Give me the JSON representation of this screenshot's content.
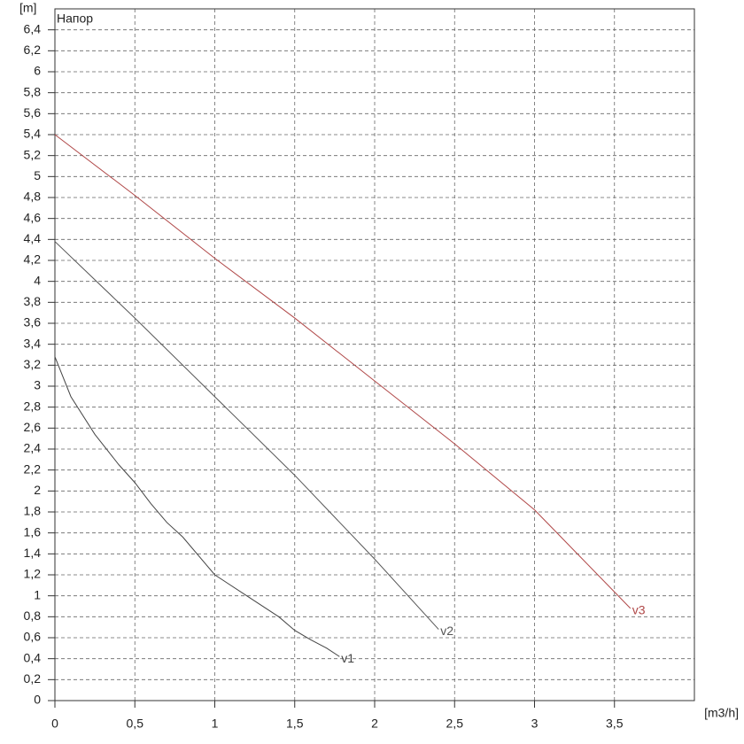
{
  "chart_data": {
    "type": "line",
    "title": "Напор",
    "y_label": "[m]",
    "x_label": "[m3/h]",
    "xlim": [
      0,
      4
    ],
    "ylim": [
      0,
      6.6
    ],
    "grid": true,
    "xticks": [
      0,
      {
        "value": 0.5,
        "label": "0,5"
      },
      1,
      {
        "value": 1.5,
        "label": "1,5"
      },
      2,
      {
        "value": 2.5,
        "label": "2,5"
      },
      3,
      {
        "value": 3.5,
        "label": "3,5"
      }
    ],
    "yticks": [
      0,
      {
        "value": 0.2,
        "label": "0,2"
      },
      {
        "value": 0.4,
        "label": "0,4"
      },
      {
        "value": 0.6,
        "label": "0,6"
      },
      {
        "value": 0.8,
        "label": "0,8"
      },
      1,
      {
        "value": 1.2,
        "label": "1,2"
      },
      {
        "value": 1.4,
        "label": "1,4"
      },
      {
        "value": 1.6,
        "label": "1,6"
      },
      {
        "value": 1.8,
        "label": "1,8"
      },
      2,
      {
        "value": 2.2,
        "label": "2,2"
      },
      {
        "value": 2.4,
        "label": "2,4"
      },
      {
        "value": 2.6,
        "label": "2,6"
      },
      {
        "value": 2.8,
        "label": "2,8"
      },
      3,
      {
        "value": 3.2,
        "label": "3,2"
      },
      {
        "value": 3.4,
        "label": "3,4"
      },
      {
        "value": 3.6,
        "label": "3,6"
      },
      {
        "value": 3.8,
        "label": "3,8"
      },
      4,
      {
        "value": 4.2,
        "label": "4,2"
      },
      {
        "value": 4.4,
        "label": "4,4"
      },
      {
        "value": 4.6,
        "label": "4,6"
      },
      {
        "value": 4.8,
        "label": "4,8"
      },
      5,
      {
        "value": 5.2,
        "label": "5,2"
      },
      {
        "value": 5.4,
        "label": "5,4"
      },
      {
        "value": 5.6,
        "label": "5,6"
      },
      {
        "value": 5.8,
        "label": "5,8"
      },
      6,
      {
        "value": 6.2,
        "label": "6,2"
      },
      {
        "value": 6.4,
        "label": "6,4"
      }
    ],
    "series": [
      {
        "name": "v1",
        "color": "#444444",
        "x": [
          0,
          0.1,
          0.25,
          0.4,
          0.5,
          0.6,
          0.7,
          0.8,
          1.0,
          1.2,
          1.4,
          1.5,
          1.6,
          1.7,
          1.78
        ],
        "values": [
          3.28,
          2.9,
          2.54,
          2.25,
          2.08,
          1.88,
          1.7,
          1.56,
          1.2,
          1.0,
          0.8,
          0.67,
          0.58,
          0.5,
          0.42
        ]
      },
      {
        "name": "v2",
        "color": "#555555",
        "x": [
          0,
          0.5,
          1,
          1.5,
          2,
          2.4
        ],
        "values": [
          4.38,
          3.65,
          2.9,
          2.15,
          1.35,
          0.68
        ]
      },
      {
        "name": "v3",
        "color": "#b04848",
        "x": [
          0,
          0.5,
          1,
          1.5,
          2,
          2.5,
          3,
          3.6
        ],
        "values": [
          5.4,
          4.82,
          4.22,
          3.65,
          3.05,
          2.45,
          1.82,
          0.88
        ]
      }
    ]
  }
}
